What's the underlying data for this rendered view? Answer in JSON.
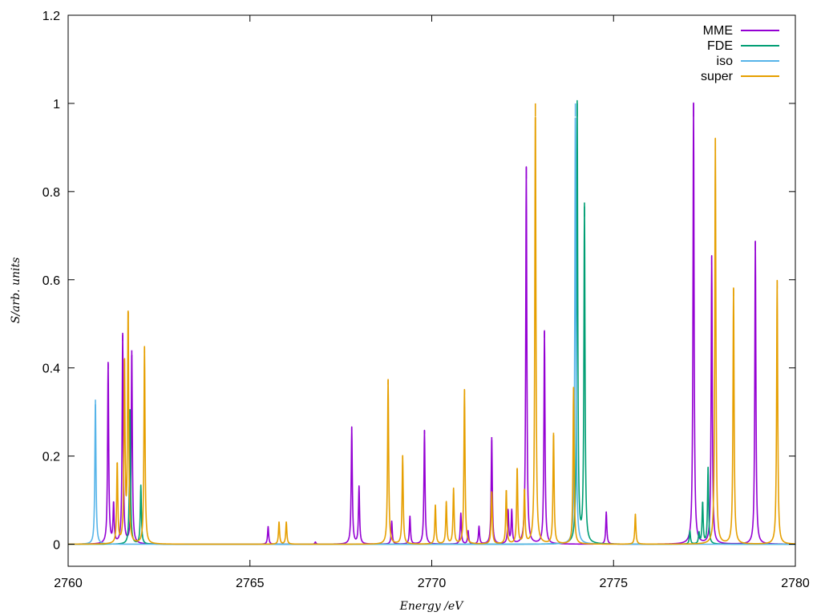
{
  "chart_data": {
    "type": "line",
    "title": "",
    "xlabel": "Energy /eV",
    "ylabel": "S/arb. units",
    "xlim": [
      2760,
      2780
    ],
    "ylim": [
      -0.05,
      1.2
    ],
    "xticks": [
      2760,
      2765,
      2770,
      2775,
      2780
    ],
    "xtick_labels": [
      "2760",
      "2765",
      "2770",
      "2775",
      "2780"
    ],
    "yticks": [
      0,
      0.2,
      0.4,
      0.6,
      0.8,
      1,
      1.2
    ],
    "ytick_labels": [
      "0",
      "0.2",
      "0.4",
      "0.6",
      "0.8",
      "1",
      "1.2"
    ],
    "legend_position": "top-right",
    "grid": false,
    "linewidth_gamma": 0.018,
    "series": [
      {
        "name": "MME",
        "color": "#9400d3",
        "peaks": [
          [
            2761.1,
            0.41
          ],
          [
            2761.25,
            0.09
          ],
          [
            2761.5,
            0.475
          ],
          [
            2761.75,
            0.44
          ],
          [
            2765.5,
            0.04
          ],
          [
            2766.8,
            0.005
          ],
          [
            2767.8,
            0.265
          ],
          [
            2768.0,
            0.13
          ],
          [
            2768.9,
            0.052
          ],
          [
            2769.4,
            0.063
          ],
          [
            2769.8,
            0.258
          ],
          [
            2770.8,
            0.07
          ],
          [
            2771.0,
            0.03
          ],
          [
            2771.3,
            0.04
          ],
          [
            2771.65,
            0.243
          ],
          [
            2772.1,
            0.075
          ],
          [
            2772.2,
            0.075
          ],
          [
            2772.6,
            0.855
          ],
          [
            2773.1,
            0.483
          ],
          [
            2774.8,
            0.073
          ],
          [
            2777.2,
            1.0
          ],
          [
            2777.7,
            0.653
          ],
          [
            2778.9,
            0.687
          ]
        ]
      },
      {
        "name": "FDE",
        "color": "#009e73",
        "peaks": [
          [
            2761.7,
            0.305
          ],
          [
            2762.0,
            0.133
          ],
          [
            2774.0,
            1.0
          ],
          [
            2774.2,
            0.766
          ],
          [
            2777.1,
            0.03
          ],
          [
            2777.35,
            0.025
          ],
          [
            2777.45,
            0.095
          ],
          [
            2777.6,
            0.173
          ]
        ]
      },
      {
        "name": "iso",
        "color": "#56b4e9",
        "peaks": [
          [
            2760.75,
            0.328
          ],
          [
            2773.95,
            1.0
          ]
        ]
      },
      {
        "name": "super",
        "color": "#e69f00",
        "peaks": [
          [
            2761.35,
            0.185
          ],
          [
            2761.55,
            0.415
          ],
          [
            2761.65,
            0.53
          ],
          [
            2762.1,
            0.447
          ],
          [
            2765.8,
            0.05
          ],
          [
            2766.0,
            0.05
          ],
          [
            2768.8,
            0.373
          ],
          [
            2769.2,
            0.2
          ],
          [
            2770.1,
            0.088
          ],
          [
            2770.4,
            0.095
          ],
          [
            2770.6,
            0.125
          ],
          [
            2770.9,
            0.35
          ],
          [
            2771.65,
            0.12
          ],
          [
            2772.05,
            0.123
          ],
          [
            2772.35,
            0.173
          ],
          [
            2772.55,
            0.123
          ],
          [
            2772.85,
            1.0
          ],
          [
            2773.35,
            0.253
          ],
          [
            2773.9,
            0.355
          ],
          [
            2775.6,
            0.068
          ],
          [
            2777.8,
            0.92
          ],
          [
            2778.3,
            0.58
          ],
          [
            2779.5,
            0.598
          ]
        ]
      }
    ]
  }
}
